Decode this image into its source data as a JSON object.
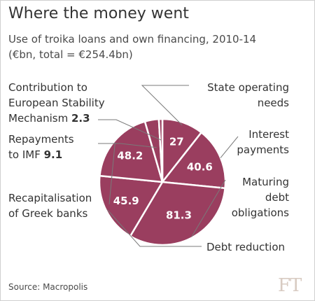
{
  "title": "Where the money went",
  "subtitle_line1": "Use of troika loans and own financing, 2010-14",
  "subtitle_line2": "(€bn, total = €254.4bn)",
  "source": "Source: Macropolis",
  "logo": "FT",
  "chart_data": {
    "type": "pie",
    "total": 254.4,
    "unit": "€bn",
    "slices": [
      {
        "label": "State operating needs",
        "value": 27,
        "value_label": "27"
      },
      {
        "label": "Interest payments",
        "value": 40.6,
        "value_label": "40.6"
      },
      {
        "label": "Maturing debt obligations",
        "value": 81.3,
        "value_label": "81.3"
      },
      {
        "label": "Debt reduction",
        "value": 45.9,
        "value_label": "45.9"
      },
      {
        "label": "Recapitalisation of Greek banks",
        "value": 48.2,
        "value_label": "48.2"
      },
      {
        "label": "Repayments to IMF",
        "value": 9.1,
        "value_label": ""
      },
      {
        "label": "Contribution to European Stability Mechanism",
        "value": 2.3,
        "value_label": ""
      }
    ],
    "colors": {
      "slice": "#9a3e5f",
      "border": "#ffffff",
      "leader": "#7a7a7a"
    }
  },
  "labels": {
    "state_l1": "State operating",
    "state_l2": "needs",
    "interest_l1": "Interest",
    "interest_l2": "payments",
    "maturing_l1": "Maturing",
    "maturing_l2": "debt",
    "maturing_l3": "obligations",
    "debt_reduction": "Debt reduction",
    "recap_l1": "Recapitalisation",
    "recap_l2": "of Greek banks",
    "esm_l1": "Contribution to",
    "esm_l2": "European Stability",
    "esm_l3": "Mechanism",
    "esm_value": "2.3",
    "imf_l1": "Repayments",
    "imf_l2": "to IMF",
    "imf_value": "9.1"
  }
}
